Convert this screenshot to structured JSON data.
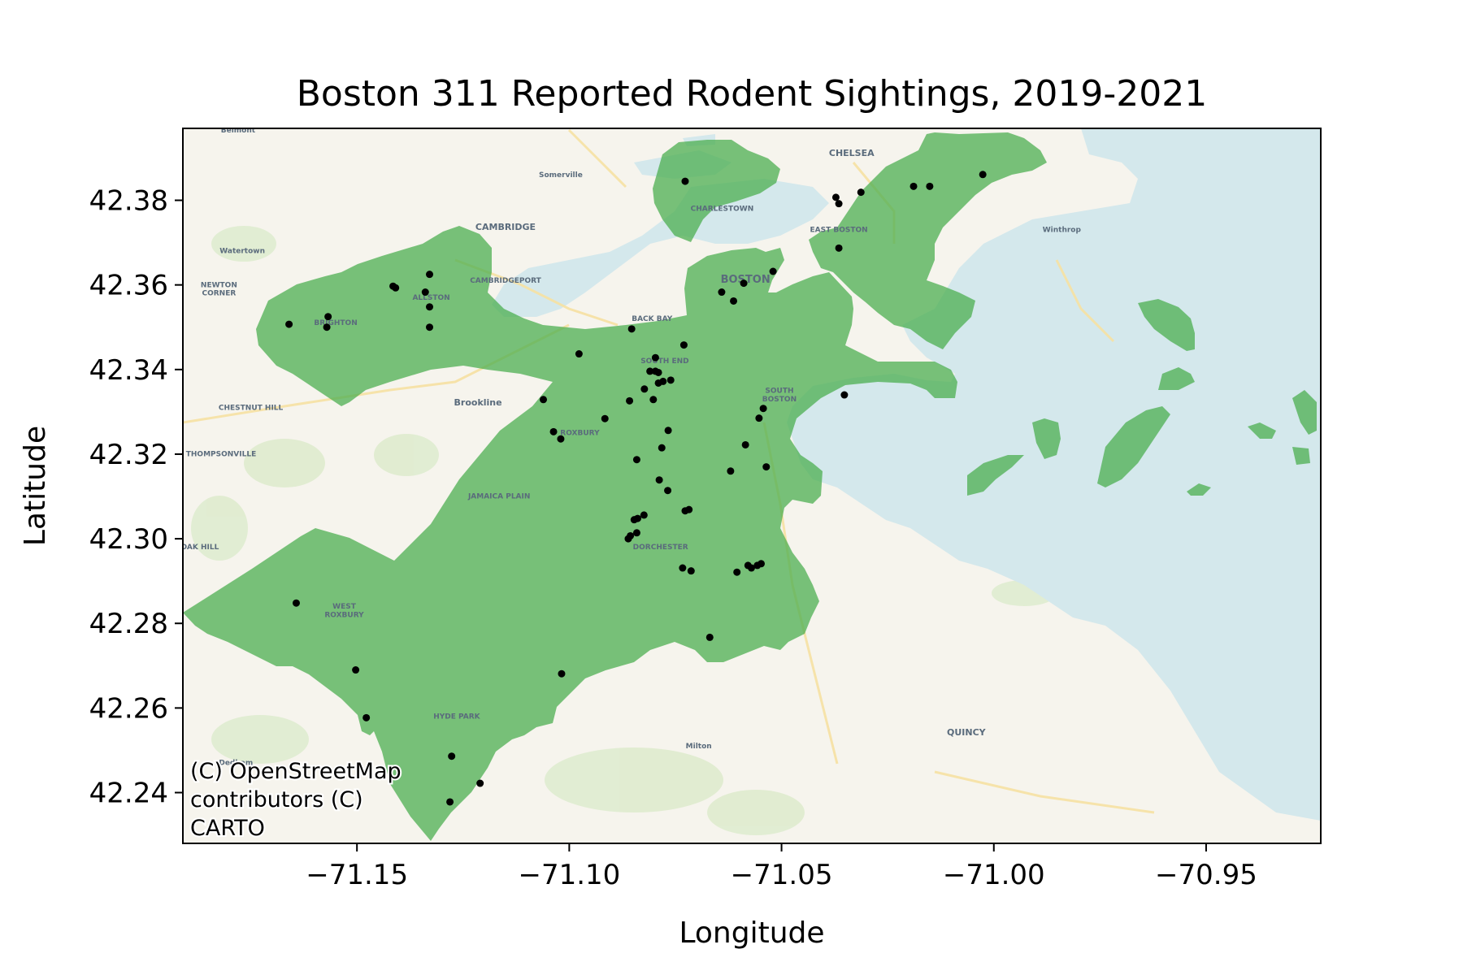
{
  "chart_data": {
    "type": "scatter",
    "title": "Boston 311 Reported Rodent Sightings, 2019-2021",
    "xlabel": "Longitude",
    "ylabel": "Latitude",
    "xlim": [
      -71.191,
      -70.923
    ],
    "ylim": [
      42.228,
      42.397
    ],
    "xticks": [
      -71.15,
      -71.1,
      -71.05,
      -71.0,
      -70.95
    ],
    "xtick_labels": [
      "−71.15",
      "−71.10",
      "−71.05",
      "−71.00",
      "−70.95"
    ],
    "yticks": [
      42.24,
      42.26,
      42.28,
      42.3,
      42.32,
      42.34,
      42.36,
      42.38
    ],
    "ytick_labels": [
      "42.24",
      "42.26",
      "42.28",
      "42.30",
      "42.32",
      "42.34",
      "42.36",
      "42.38"
    ],
    "grid": false,
    "attribution": "(C) OpenStreetMap contributors (C) CARTO",
    "attribution_lines": [
      "(C) OpenStreetMap",
      "contributors (C)",
      "CARTO"
    ],
    "basemap": "CARTO Voyager",
    "region_fill": "#4caf50",
    "point_color": "#000000",
    "map_labels": [
      {
        "text": "Belmont",
        "lon": -71.178,
        "lat": 42.396,
        "size": "small"
      },
      {
        "text": "Somerville",
        "lon": -71.102,
        "lat": 42.3855,
        "size": "small"
      },
      {
        "text": "CHELSEA",
        "lon": -71.0335,
        "lat": 42.3905,
        "size": "mid"
      },
      {
        "text": "CHARLESTOWN",
        "lon": -71.064,
        "lat": 42.3775,
        "size": "small"
      },
      {
        "text": "CAMBRIDGE",
        "lon": -71.115,
        "lat": 42.373,
        "size": "mid"
      },
      {
        "text": "EAST BOSTON",
        "lon": -71.0365,
        "lat": 42.3725,
        "size": "small"
      },
      {
        "text": "Winthrop",
        "lon": -70.984,
        "lat": 42.3725,
        "size": "small"
      },
      {
        "text": "Watertown",
        "lon": -71.177,
        "lat": 42.3675,
        "size": "small"
      },
      {
        "text": "CAMBRIDGEPORT",
        "lon": -71.115,
        "lat": 42.3605,
        "size": "small"
      },
      {
        "text": "BOSTON",
        "lon": -71.0585,
        "lat": 42.3605,
        "size": "big"
      },
      {
        "text": "NEWTON",
        "lon": -71.1825,
        "lat": 42.3595,
        "size": "small"
      },
      {
        "text": "CORNER",
        "lon": -71.1825,
        "lat": 42.3575,
        "size": "small"
      },
      {
        "text": "ALLSTON",
        "lon": -71.1325,
        "lat": 42.3565,
        "size": "small"
      },
      {
        "text": "BRIGHTON",
        "lon": -71.155,
        "lat": 42.3505,
        "size": "small"
      },
      {
        "text": "BACK BAY",
        "lon": -71.0805,
        "lat": 42.3515,
        "size": "small"
      },
      {
        "text": "SOUTH END",
        "lon": -71.0775,
        "lat": 42.3415,
        "size": "small"
      },
      {
        "text": "SOUTH",
        "lon": -71.0505,
        "lat": 42.3345,
        "size": "small"
      },
      {
        "text": "BOSTON",
        "lon": -71.0505,
        "lat": 42.3325,
        "size": "small"
      },
      {
        "text": "Brookline",
        "lon": -71.1215,
        "lat": 42.3315,
        "size": "mid"
      },
      {
        "text": "CHESTNUT HILL",
        "lon": -71.175,
        "lat": 42.3305,
        "size": "small"
      },
      {
        "text": "ROXBURY",
        "lon": -71.0975,
        "lat": 42.3245,
        "size": "small"
      },
      {
        "text": "THOMPSONVILLE",
        "lon": -71.182,
        "lat": 42.3195,
        "size": "small"
      },
      {
        "text": "JAMAICA PLAIN",
        "lon": -71.1165,
        "lat": 42.3095,
        "size": "small"
      },
      {
        "text": "OAK HILL",
        "lon": -71.187,
        "lat": 42.2975,
        "size": "small"
      },
      {
        "text": "DORCHESTER",
        "lon": -71.0785,
        "lat": 42.2975,
        "size": "small"
      },
      {
        "text": "WEST",
        "lon": -71.153,
        "lat": 42.2835,
        "size": "small"
      },
      {
        "text": "ROXBURY",
        "lon": -71.153,
        "lat": 42.2815,
        "size": "small"
      },
      {
        "text": "HYDE PARK",
        "lon": -71.1265,
        "lat": 42.2575,
        "size": "small"
      },
      {
        "text": "QUINCY",
        "lon": -71.0065,
        "lat": 42.2535,
        "size": "mid"
      },
      {
        "text": "Milton",
        "lon": -71.0695,
        "lat": 42.2505,
        "size": "small"
      },
      {
        "text": "Dedham",
        "lon": -71.1785,
        "lat": 42.2465,
        "size": "small"
      }
    ],
    "points": [
      [
        -71.0727,
        42.3845
      ],
      [
        -71.0372,
        42.3807
      ],
      [
        -71.0365,
        42.3792
      ],
      [
        -71.0313,
        42.3819
      ],
      [
        -71.0189,
        42.3833
      ],
      [
        -71.0151,
        42.3833
      ],
      [
        -71.0026,
        42.3861
      ],
      [
        -71.0365,
        42.3687
      ],
      [
        -71.1415,
        42.3597
      ],
      [
        -71.1409,
        42.3593
      ],
      [
        -71.1329,
        42.3625
      ],
      [
        -71.1339,
        42.3583
      ],
      [
        -71.1329,
        42.3548
      ],
      [
        -71.1568,
        42.3525
      ],
      [
        -71.1571,
        42.35
      ],
      [
        -71.166,
        42.3507
      ],
      [
        -71.1329,
        42.35
      ],
      [
        -71.0641,
        42.3583
      ],
      [
        -71.0613,
        42.3562
      ],
      [
        -71.0589,
        42.3604
      ],
      [
        -71.052,
        42.3632
      ],
      [
        -71.0853,
        42.3496
      ],
      [
        -71.0977,
        42.3437
      ],
      [
        -71.073,
        42.3458
      ],
      [
        -71.0797,
        42.3428
      ],
      [
        -71.0797,
        42.3396
      ],
      [
        -71.081,
        42.3396
      ],
      [
        -71.079,
        42.3393
      ],
      [
        -71.0779,
        42.3372
      ],
      [
        -71.079,
        42.3368
      ],
      [
        -71.0761,
        42.3375
      ],
      [
        -71.0823,
        42.3354
      ],
      [
        -71.1061,
        42.3329
      ],
      [
        -71.0858,
        42.3326
      ],
      [
        -71.0802,
        42.3329
      ],
      [
        -71.0916,
        42.3284
      ],
      [
        -71.0352,
        42.334
      ],
      [
        -71.1037,
        42.3253
      ],
      [
        -71.102,
        42.3236
      ],
      [
        -71.0767,
        42.3256
      ],
      [
        -71.0782,
        42.3215
      ],
      [
        -71.0841,
        42.3187
      ],
      [
        -71.0543,
        42.3308
      ],
      [
        -71.0553,
        42.3285
      ],
      [
        -71.0585,
        42.3222
      ],
      [
        -71.062,
        42.316
      ],
      [
        -71.0536,
        42.317
      ],
      [
        -71.0788,
        42.3139
      ],
      [
        -71.0768,
        42.3114
      ],
      [
        -71.0718,
        42.3069
      ],
      [
        -71.0727,
        42.3066
      ],
      [
        -71.0824,
        42.3056
      ],
      [
        -71.0839,
        42.3048
      ],
      [
        -71.0847,
        42.3045
      ],
      [
        -71.0841,
        42.3014
      ],
      [
        -71.0856,
        42.3007
      ],
      [
        -71.0861,
        42.3
      ],
      [
        -71.0733,
        42.2931
      ],
      [
        -71.0713,
        42.2924
      ],
      [
        -71.0579,
        42.2937
      ],
      [
        -71.0571,
        42.2931
      ],
      [
        -71.0557,
        42.2937
      ],
      [
        -71.0548,
        42.2941
      ],
      [
        -71.0605,
        42.2921
      ],
      [
        -71.1643,
        42.2848
      ],
      [
        -71.0669,
        42.2767
      ],
      [
        -71.1503,
        42.269
      ],
      [
        -71.1018,
        42.2681
      ],
      [
        -71.1478,
        42.2577
      ],
      [
        -71.1277,
        42.2486
      ],
      [
        -71.121,
        42.2422
      ],
      [
        -71.1281,
        42.2378
      ]
    ]
  }
}
